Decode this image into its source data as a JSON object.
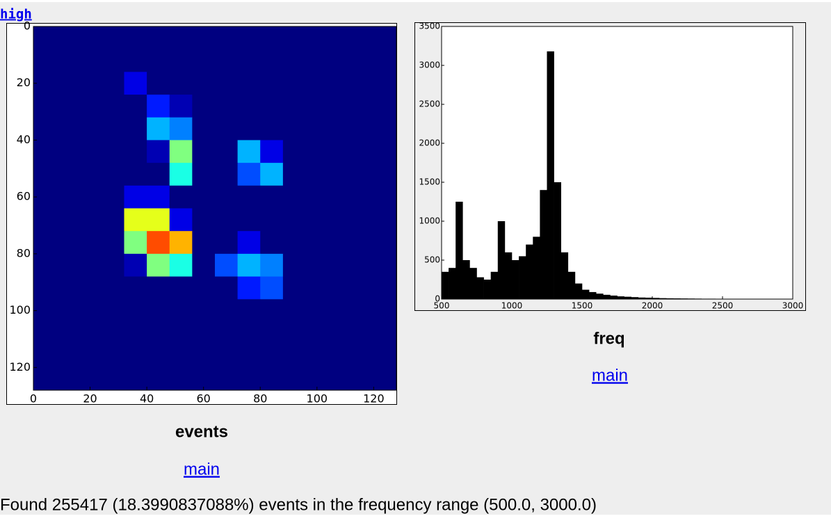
{
  "page": {
    "link": "high",
    "footer": "Found 255417 (18.3990837088%) events in the frequency range (500.0, 3000.0)"
  },
  "chart_data": [
    {
      "type": "heatmap",
      "title": "events",
      "link": "main",
      "colormap": "jet",
      "xbins": [
        0,
        8,
        16,
        24,
        32,
        40,
        48,
        56,
        64,
        72,
        80,
        88,
        96,
        104,
        112,
        120,
        128
      ],
      "ybins": [
        0,
        8,
        16,
        24,
        32,
        40,
        48,
        56,
        64,
        72,
        80,
        88,
        96,
        104,
        112,
        120,
        128
      ],
      "z": [
        [
          0,
          0,
          0,
          0,
          0,
          0,
          0,
          0,
          0,
          0,
          0,
          0,
          0,
          0,
          0,
          0
        ],
        [
          0,
          0,
          0,
          0,
          0,
          0,
          0,
          0,
          0,
          0,
          0,
          0,
          0,
          0,
          0,
          0
        ],
        [
          0,
          0,
          0,
          0,
          0.1,
          0,
          0,
          0,
          0,
          0,
          0,
          0,
          0,
          0,
          0,
          0
        ],
        [
          0,
          0,
          0,
          0,
          0,
          0.15,
          0.05,
          0,
          0,
          0,
          0,
          0,
          0,
          0,
          0,
          0
        ],
        [
          0,
          0,
          0,
          0,
          0,
          0.3,
          0.25,
          0,
          0,
          0,
          0,
          0,
          0,
          0,
          0,
          0
        ],
        [
          0,
          0,
          0,
          0,
          0,
          0.05,
          0.5,
          0,
          0,
          0.3,
          0.1,
          0,
          0,
          0,
          0,
          0
        ],
        [
          0,
          0,
          0,
          0,
          0,
          0,
          0.4,
          0,
          0,
          0.2,
          0.3,
          0,
          0,
          0,
          0,
          0
        ],
        [
          0,
          0,
          0,
          0,
          0.1,
          0.1,
          0,
          0,
          0,
          0,
          0,
          0,
          0,
          0,
          0,
          0
        ],
        [
          0,
          0,
          0,
          0,
          0.6,
          0.6,
          0.1,
          0,
          0,
          0,
          0,
          0,
          0,
          0,
          0,
          0
        ],
        [
          0,
          0,
          0,
          0,
          0.5,
          0.8,
          0.7,
          0,
          0,
          0.1,
          0,
          0,
          0,
          0,
          0,
          0
        ],
        [
          0,
          0,
          0,
          0,
          0.05,
          0.5,
          0.4,
          0,
          0.2,
          0.3,
          0.25,
          0,
          0,
          0,
          0,
          0
        ],
        [
          0,
          0,
          0,
          0,
          0,
          0,
          0,
          0,
          0,
          0.15,
          0.2,
          0,
          0,
          0,
          0,
          0
        ],
        [
          0,
          0,
          0,
          0,
          0,
          0,
          0,
          0,
          0,
          0,
          0,
          0,
          0,
          0,
          0,
          0
        ],
        [
          0,
          0,
          0,
          0,
          0,
          0,
          0,
          0,
          0,
          0,
          0,
          0,
          0,
          0,
          0,
          0
        ],
        [
          0,
          0,
          0,
          0,
          0,
          0,
          0,
          0,
          0,
          0,
          0,
          0,
          0,
          0,
          0,
          0
        ],
        [
          0,
          0,
          0,
          0,
          0,
          0,
          0,
          0,
          0,
          0,
          0,
          0,
          0,
          0,
          0,
          0
        ]
      ],
      "xlim": [
        0,
        128
      ],
      "ylim": [
        128,
        0
      ],
      "xticks": [
        0,
        20,
        40,
        60,
        80,
        100,
        120
      ],
      "yticks": [
        0,
        20,
        40,
        60,
        80,
        100,
        120
      ]
    },
    {
      "type": "histogram",
      "title": "freq",
      "link": "main",
      "color": "#000000",
      "bins": [
        500,
        550,
        600,
        650,
        700,
        750,
        800,
        850,
        900,
        950,
        1000,
        1050,
        1100,
        1150,
        1200,
        1250,
        1300,
        1350,
        1400,
        1450,
        1500,
        1550,
        1600,
        1650,
        1700,
        1750,
        1800,
        1850,
        1900,
        1950,
        2000,
        2050,
        2100,
        2150,
        2200,
        2250,
        2300,
        2350,
        2400,
        2450,
        2500,
        2550,
        2600,
        2650,
        2700,
        2750,
        2800,
        2850,
        2900,
        2950,
        3000
      ],
      "counts": [
        350,
        400,
        1250,
        500,
        400,
        280,
        250,
        350,
        1000,
        600,
        500,
        550,
        700,
        800,
        1400,
        3180,
        1500,
        600,
        350,
        200,
        120,
        90,
        70,
        55,
        45,
        35,
        30,
        25,
        20,
        18,
        15,
        12,
        10,
        9,
        8,
        7,
        6,
        5,
        5,
        4,
        4,
        3,
        3,
        3,
        2,
        2,
        2,
        2,
        1,
        1
      ],
      "xlim": [
        500,
        3000
      ],
      "ylim": [
        0,
        3500
      ],
      "xticks": [
        500,
        1000,
        1500,
        2000,
        2500,
        3000
      ],
      "yticks": [
        0,
        500,
        1000,
        1500,
        2000,
        2500,
        3000,
        3500
      ]
    }
  ]
}
